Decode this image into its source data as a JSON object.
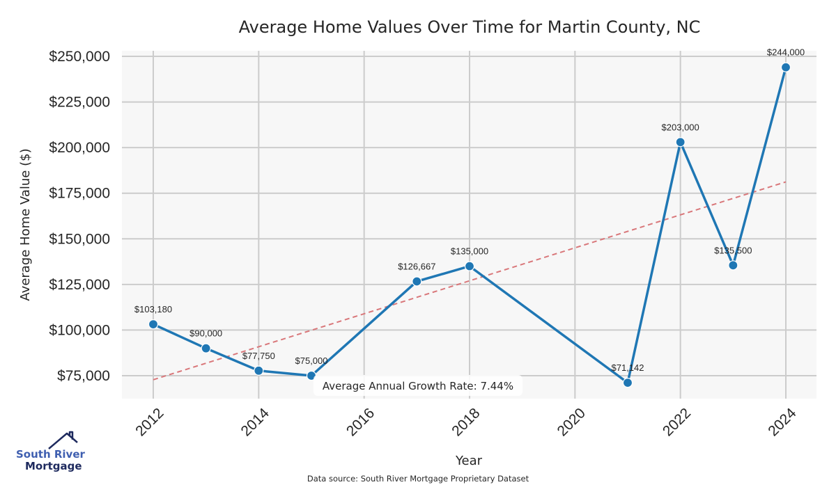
{
  "chart_data": {
    "type": "line",
    "title": "Average Home Values Over Time for Martin County, NC",
    "xlabel": "Year",
    "ylabel": "Average Home Value ($)",
    "xlim": [
      2011.4,
      2024.6
    ],
    "ylim": [
      62000,
      252500
    ],
    "grid": true,
    "x_ticks": [
      2012,
      2014,
      2016,
      2018,
      2020,
      2022,
      2024
    ],
    "x_tick_labels": [
      "2012",
      "2014",
      "2016",
      "2018",
      "2020",
      "2022",
      "2024"
    ],
    "y_ticks": [
      75000,
      100000,
      125000,
      150000,
      175000,
      200000,
      225000,
      250000
    ],
    "y_tick_labels": [
      "$75,000",
      "$100,000",
      "$125,000",
      "$150,000",
      "$175,000",
      "$200,000",
      "$225,000",
      "$250,000"
    ],
    "series": [
      {
        "name": "Average Home Value",
        "color": "#1f77b4",
        "x": [
          2012,
          2013,
          2014,
          2015,
          2017,
          2018,
          2021,
          2022,
          2023,
          2024
        ],
        "values": [
          103180,
          90000,
          77750,
          75000,
          126667,
          135000,
          71142,
          203000,
          135500,
          244000
        ],
        "labels": [
          "$103,180",
          "$90,000",
          "$77,750",
          "$75,000",
          "$126,667",
          "$135,000",
          "$71,142",
          "$203,000",
          "$135,500",
          "$244,000"
        ]
      }
    ],
    "trendline": {
      "name": "Trend",
      "color": "#d9777a",
      "style": "dashed",
      "x": [
        2012,
        2024
      ],
      "values": [
        72800,
        181200
      ]
    },
    "annotation": "Average Annual Growth Rate: 7.44%",
    "source": "Data source: South River Mortgage Proprietary Dataset"
  },
  "logo": {
    "line1": "South River",
    "line2": "Mortgage"
  },
  "colors": {
    "plot_bg": "#f7f7f7",
    "grid": "#cccccc",
    "line": "#1f77b4",
    "trend": "#d9777a"
  }
}
